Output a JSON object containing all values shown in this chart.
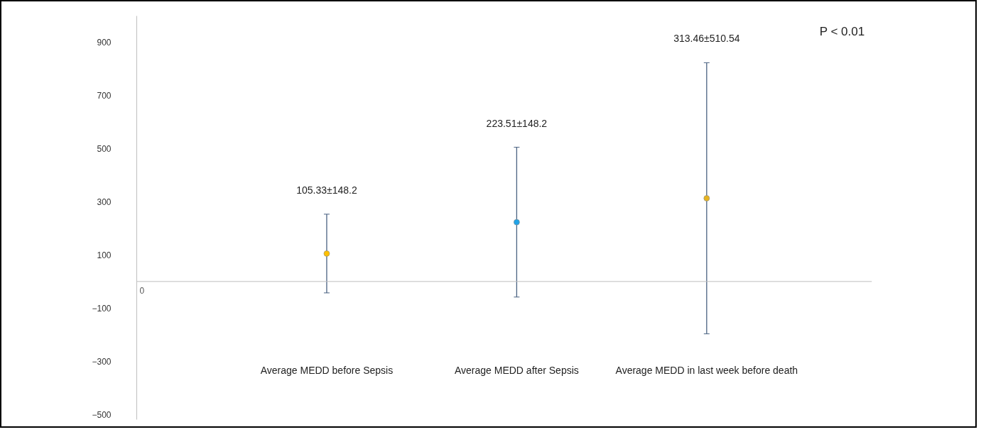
{
  "chart_data": {
    "type": "scatter",
    "categories": [
      "Average MEDD before Sepsis",
      "Average MEDD after Sepsis",
      "Average MEDD in last week before death"
    ],
    "values": [
      105.33,
      223.51,
      313.46
    ],
    "colors": [
      "#ffc000",
      "#1fa3e8",
      "#e6b422"
    ],
    "errors": [
      148.2,
      282,
      510.54
    ],
    "ylim": [
      -520,
      1000
    ],
    "yticks": [
      -500,
      -300,
      -100,
      100,
      300,
      500,
      700,
      900
    ],
    "annotations": [
      "P < 0.01",
      "0",
      {
        "text": "105.33±148.2",
        "x": "Average MEDD before Sepsis",
        "y": 253.53
      },
      {
        "text": "223.51±148.2",
        "x": "Average MEDD after Sepsis",
        "y": 505.51
      },
      {
        "text": "313.46±510.54",
        "x": "Average MEDD in last week before death",
        "y": 824
      }
    ],
    "marker": "circle",
    "grid": false
  }
}
